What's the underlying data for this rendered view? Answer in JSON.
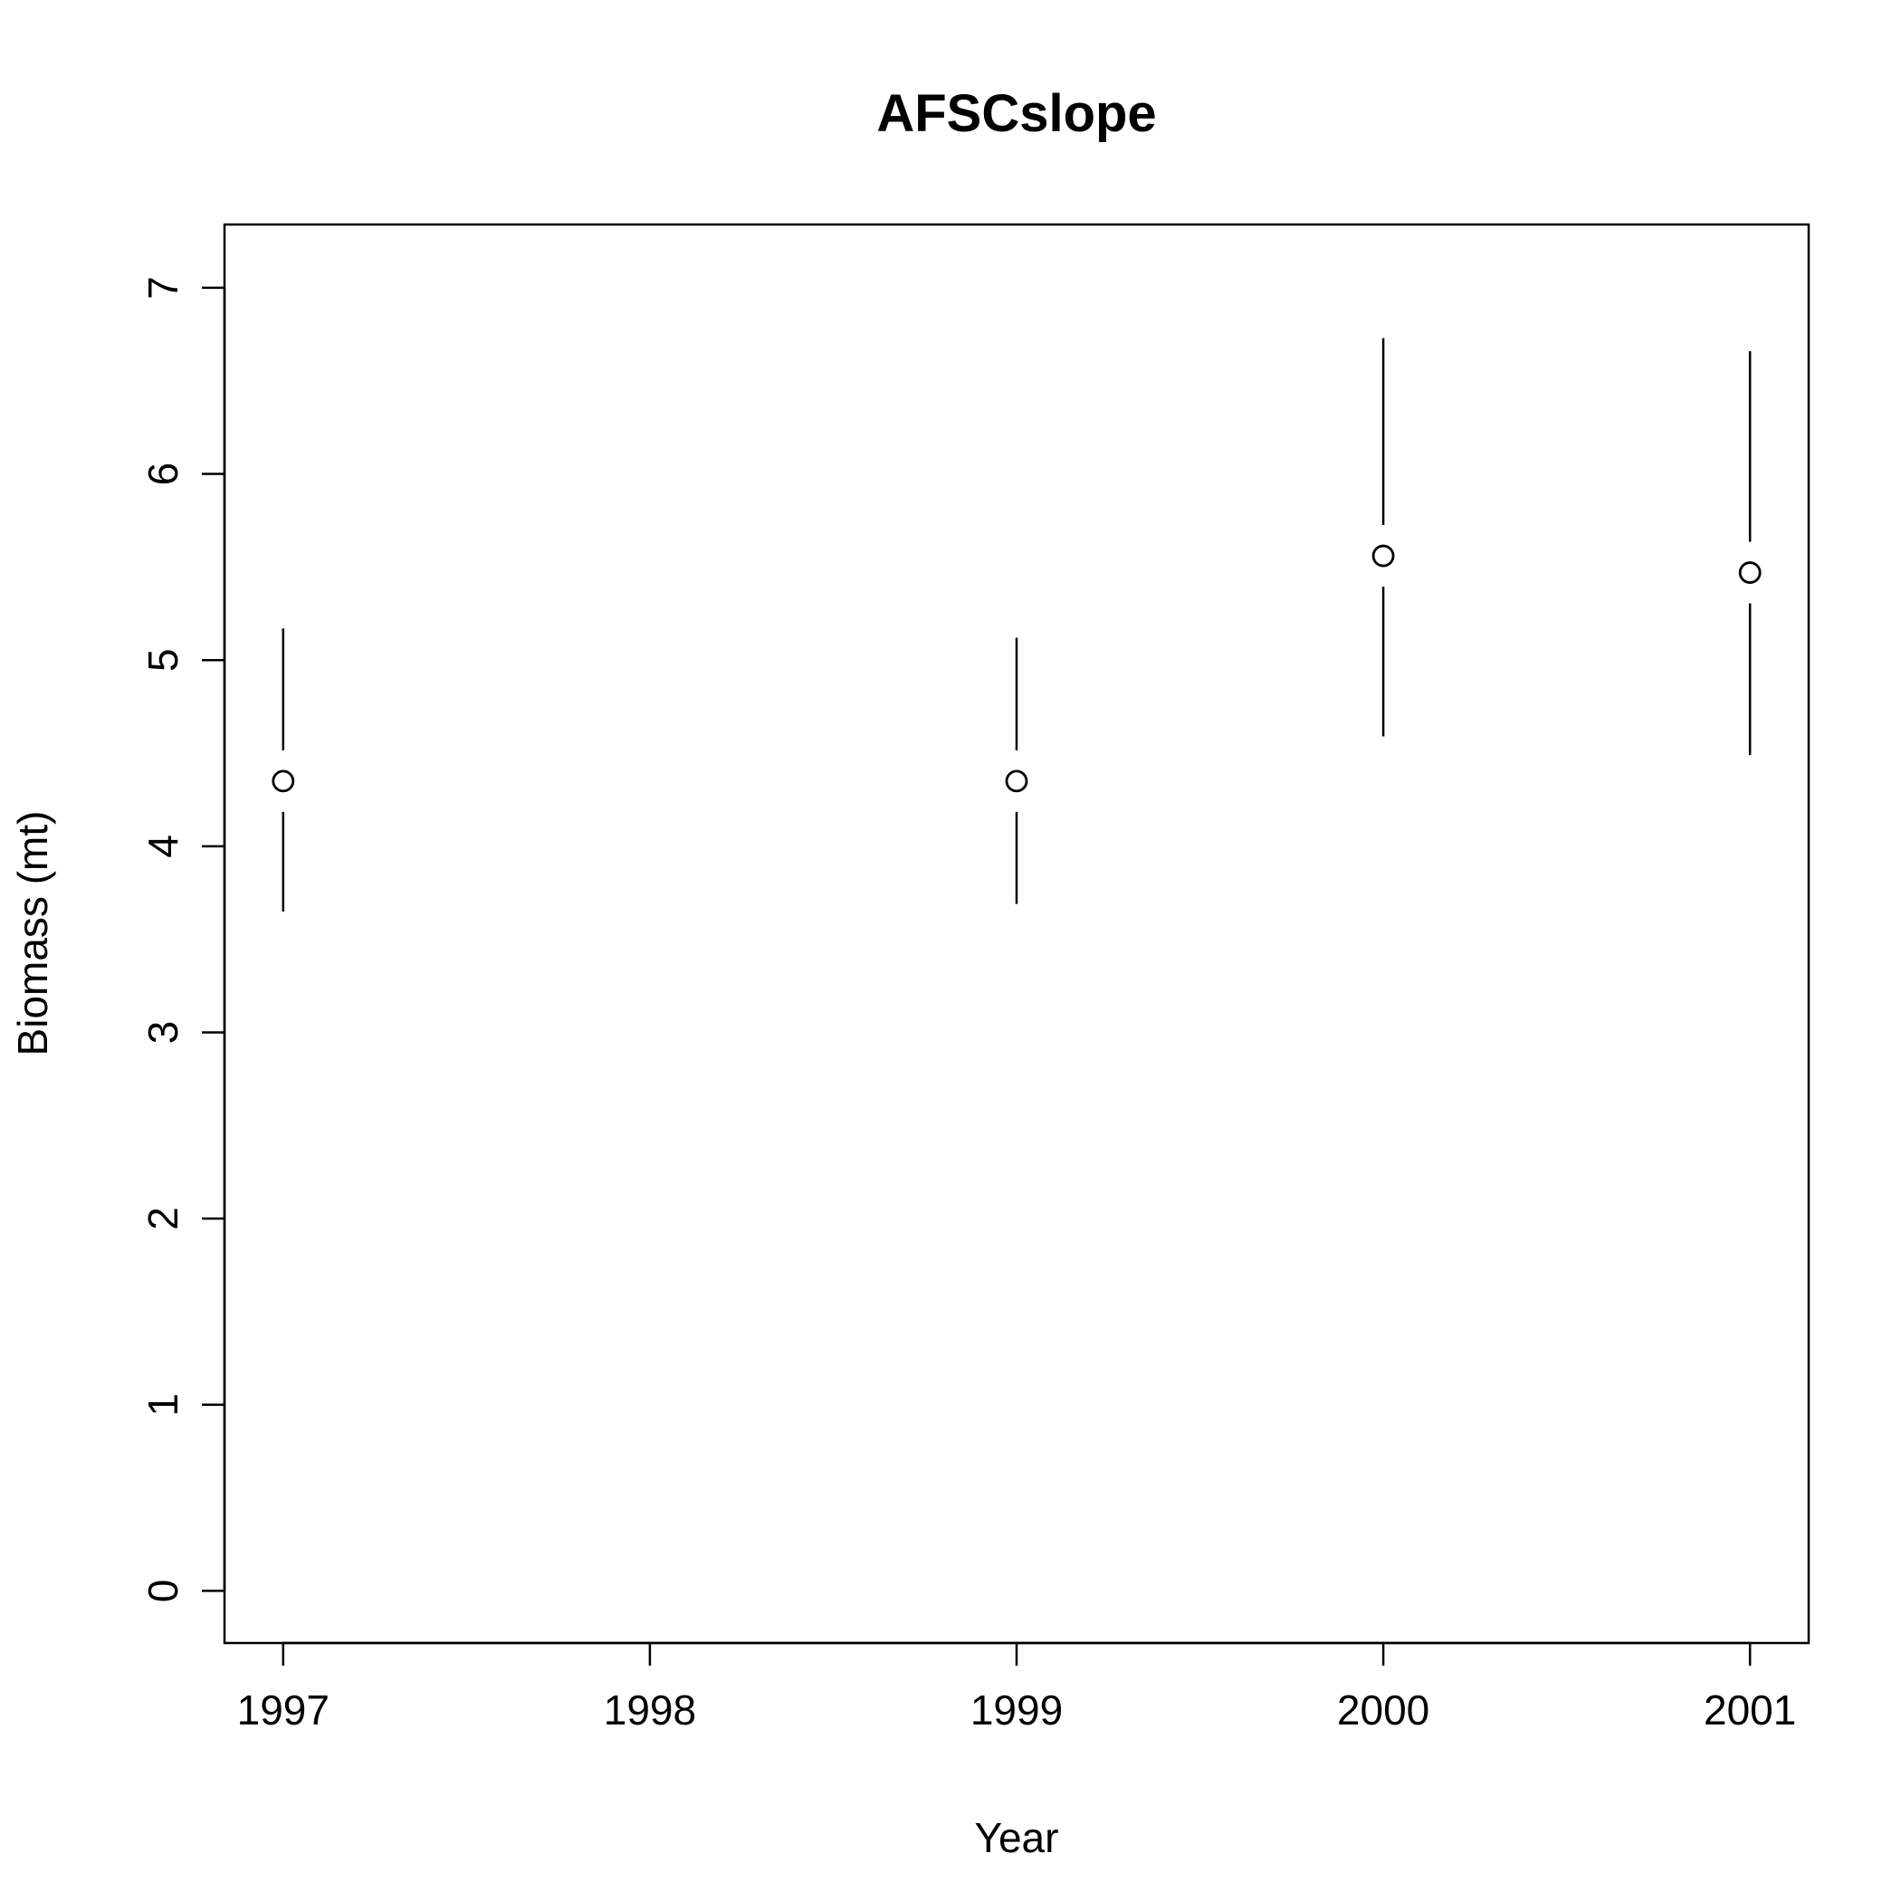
{
  "chart_data": {
    "type": "scatter",
    "title": "AFSCslope",
    "xlabel": "Year",
    "ylabel": "Biomass (mt)",
    "xlim": [
      1996.84,
      2001.16
    ],
    "ylim": [
      -0.28,
      7.34
    ],
    "x_ticks": [
      1997,
      1998,
      1999,
      2000,
      2001
    ],
    "y_ticks": [
      0,
      1,
      2,
      3,
      4,
      5,
      6,
      7
    ],
    "grid": false,
    "legend": "none",
    "points": [
      {
        "x": 1997,
        "y": 4.35,
        "lower": 3.65,
        "upper": 5.17
      },
      {
        "x": 1999,
        "y": 4.35,
        "lower": 3.69,
        "upper": 5.12
      },
      {
        "x": 2000,
        "y": 5.56,
        "lower": 4.59,
        "upper": 6.73
      },
      {
        "x": 2001,
        "y": 5.47,
        "lower": 4.49,
        "upper": 6.66
      }
    ],
    "colors": {
      "mark": "#000000",
      "background": "#ffffff"
    }
  }
}
